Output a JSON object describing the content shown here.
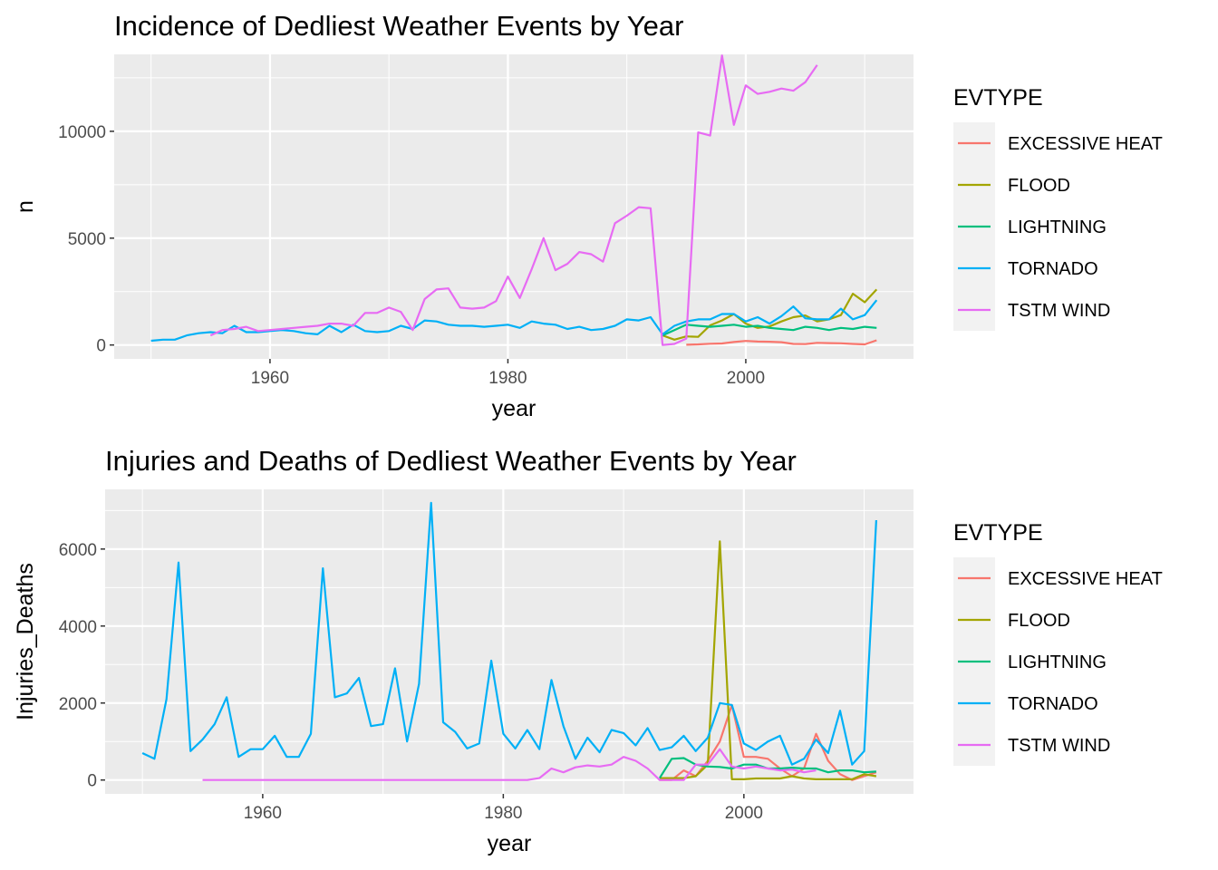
{
  "chart_data": [
    {
      "type": "line",
      "title": "Incidence of Dedliest Weather Events by Year",
      "xlabel": "year",
      "ylabel": "n",
      "xlim": [
        1946.9,
        2014.1
      ],
      "ylim": [
        -650,
        13600
      ],
      "x_ticks": [
        1960,
        1980,
        2000
      ],
      "x_tick_labels": [
        "1960",
        "1980",
        "2000"
      ],
      "y_ticks": [
        0,
        5000,
        10000
      ],
      "y_tick_labels": [
        "0",
        "5000",
        "10000"
      ],
      "grid": true,
      "legend": {
        "title": "EVTYPE",
        "placement": "right"
      },
      "series": [
        {
          "name": "EXCESSIVE HEAT",
          "color": "#F8766D",
          "x": [
            1995,
            1996,
            1997,
            1998,
            1999,
            2000,
            2001,
            2002,
            2003,
            2004,
            2005,
            2006,
            2007,
            2008,
            2009,
            2010,
            2011
          ],
          "y": [
            10,
            30,
            60,
            70,
            140,
            190,
            160,
            150,
            130,
            50,
            40,
            100,
            90,
            80,
            50,
            30,
            220
          ]
        },
        {
          "name": "FLOOD",
          "color": "#A3A500",
          "x": [
            1993,
            1994,
            1995,
            1996,
            1997,
            1998,
            1999,
            2000,
            2001,
            2002,
            2003,
            2004,
            2005,
            2006,
            2007,
            2008,
            2009,
            2010,
            2011
          ],
          "y": [
            450,
            250,
            400,
            380,
            920,
            1150,
            1450,
            1000,
            800,
            870,
            1100,
            1300,
            1380,
            1100,
            1200,
            1400,
            2400,
            2000,
            2600
          ]
        },
        {
          "name": "LIGHTNING",
          "color": "#00BF7D",
          "x": [
            1993,
            1994,
            1995,
            1996,
            1997,
            1998,
            1999,
            2000,
            2001,
            2002,
            2003,
            2004,
            2005,
            2006,
            2007,
            2008,
            2009,
            2010,
            2011
          ],
          "y": [
            450,
            700,
            950,
            900,
            850,
            900,
            950,
            850,
            900,
            800,
            750,
            700,
            850,
            800,
            700,
            800,
            750,
            850,
            800
          ]
        },
        {
          "name": "TORNADO",
          "color": "#00B0F6",
          "x": [
            1950,
            1951,
            1952,
            1953,
            1954,
            1955,
            1956,
            1957,
            1958,
            1959,
            1960,
            1961,
            1962,
            1963,
            1964,
            1965,
            1966,
            1967,
            1968,
            1969,
            1970,
            1971,
            1972,
            1973,
            1974,
            1975,
            1976,
            1977,
            1978,
            1979,
            1980,
            1981,
            1982,
            1983,
            1984,
            1985,
            1986,
            1987,
            1988,
            1989,
            1990,
            1991,
            1992,
            1993,
            1994,
            1995,
            1996,
            1997,
            1998,
            1999,
            2000,
            2001,
            2002,
            2003,
            2004,
            2005,
            2006,
            2007,
            2008,
            2009,
            2010,
            2011
          ],
          "y": [
            200,
            250,
            250,
            450,
            550,
            600,
            550,
            900,
            600,
            600,
            650,
            700,
            650,
            550,
            500,
            900,
            600,
            950,
            650,
            600,
            650,
            900,
            750,
            1150,
            1100,
            950,
            900,
            900,
            850,
            900,
            950,
            800,
            1100,
            1000,
            950,
            750,
            850,
            700,
            750,
            900,
            1200,
            1150,
            1300,
            500,
            900,
            1100,
            1200,
            1200,
            1450,
            1450,
            1100,
            1300,
            1000,
            1350,
            1800,
            1250,
            1200,
            1200,
            1700,
            1200,
            1400,
            2100
          ]
        },
        {
          "name": "TSTM WIND",
          "color": "#E76BF3",
          "x": [
            1955,
            1956,
            1957,
            1958,
            1959,
            1960,
            1961,
            1962,
            1963,
            1964,
            1965,
            1966,
            1967,
            1968,
            1969,
            1970,
            1971,
            1972,
            1973,
            1974,
            1975,
            1976,
            1977,
            1978,
            1979,
            1980,
            1981,
            1982,
            1983,
            1984,
            1985,
            1986,
            1987,
            1988,
            1989,
            1990,
            1991,
            1992,
            1993,
            1994,
            1995,
            1996,
            1997,
            1998,
            1999,
            2000,
            2001,
            2002,
            2003,
            2004,
            2005,
            2006
          ],
          "y": [
            450,
            700,
            750,
            850,
            650,
            700,
            750,
            800,
            850,
            900,
            1000,
            1000,
            900,
            1500,
            1500,
            1750,
            1550,
            700,
            2150,
            2600,
            2650,
            1750,
            1700,
            1750,
            2050,
            3200,
            2200,
            3550,
            5000,
            3500,
            3800,
            4350,
            4250,
            3900,
            5700,
            6050,
            6450,
            6400,
            0,
            50,
            300,
            9950,
            9800,
            13550,
            10300,
            12150,
            11750,
            11850,
            12000,
            11900,
            12300,
            13100
          ]
        }
      ]
    },
    {
      "type": "line",
      "title": "Injuries and Deaths of Dedliest Weather Events by Year",
      "xlabel": "year",
      "ylabel": "Injuries_Deaths",
      "xlim": [
        1946.9,
        2014.1
      ],
      "ylim": [
        -360,
        7550
      ],
      "x_ticks": [
        1960,
        1980,
        2000
      ],
      "x_tick_labels": [
        "1960",
        "1980",
        "2000"
      ],
      "y_ticks": [
        0,
        2000,
        4000,
        6000
      ],
      "y_tick_labels": [
        "0",
        "2000",
        "4000",
        "6000"
      ],
      "grid": true,
      "legend": {
        "title": "EVTYPE",
        "placement": "right"
      },
      "series": [
        {
          "name": "EXCESSIVE HEAT",
          "color": "#F8766D",
          "x": [
            1993,
            1994,
            1995,
            1996,
            1997,
            1998,
            1999,
            2000,
            2001,
            2002,
            2003,
            2004,
            2005,
            2006,
            2007,
            2008,
            2009,
            2010,
            2011
          ],
          "y": [
            0,
            0,
            250,
            100,
            500,
            1000,
            1950,
            600,
            600,
            550,
            300,
            100,
            300,
            1200,
            500,
            150,
            0,
            100,
            200
          ]
        },
        {
          "name": "FLOOD",
          "color": "#A3A500",
          "x": [
            1993,
            1994,
            1995,
            1996,
            1997,
            1998,
            1999,
            2000,
            2001,
            2002,
            2003,
            2004,
            2005,
            2006,
            2007,
            2008,
            2009,
            2010,
            2011
          ],
          "y": [
            50,
            50,
            50,
            100,
            400,
            6200,
            20,
            20,
            40,
            40,
            40,
            100,
            40,
            20,
            20,
            20,
            20,
            150,
            100
          ]
        },
        {
          "name": "LIGHTNING",
          "color": "#00BF7D",
          "x": [
            1993,
            1994,
            1995,
            1996,
            1997,
            1998,
            1999,
            2000,
            2001,
            2002,
            2003,
            2004,
            2005,
            2006,
            2007,
            2008,
            2009,
            2010,
            2011
          ],
          "y": [
            50,
            550,
            570,
            400,
            350,
            340,
            300,
            400,
            400,
            300,
            300,
            320,
            300,
            300,
            200,
            250,
            250,
            200,
            220
          ]
        },
        {
          "name": "TORNADO",
          "color": "#00B0F6",
          "x": [
            1950,
            1951,
            1952,
            1953,
            1954,
            1955,
            1956,
            1957,
            1958,
            1959,
            1960,
            1961,
            1962,
            1963,
            1964,
            1965,
            1966,
            1967,
            1968,
            1969,
            1970,
            1971,
            1972,
            1973,
            1974,
            1975,
            1976,
            1977,
            1978,
            1979,
            1980,
            1981,
            1982,
            1983,
            1984,
            1985,
            1986,
            1987,
            1988,
            1989,
            1990,
            1991,
            1992,
            1993,
            1994,
            1995,
            1996,
            1997,
            1998,
            1999,
            2000,
            2001,
            2002,
            2003,
            2004,
            2005,
            2006,
            2007,
            2008,
            2009,
            2010,
            2011
          ],
          "y": [
            700,
            550,
            2100,
            5650,
            750,
            1050,
            1450,
            2150,
            600,
            800,
            800,
            1150,
            600,
            600,
            1200,
            5500,
            2150,
            2250,
            2650,
            1400,
            1450,
            2900,
            1000,
            2500,
            7200,
            1500,
            1250,
            820,
            950,
            3100,
            1200,
            820,
            1300,
            800,
            2600,
            1400,
            550,
            1100,
            720,
            1300,
            1220,
            900,
            1350,
            780,
            850,
            1150,
            750,
            1100,
            2000,
            1950,
            950,
            780,
            1000,
            1150,
            400,
            550,
            1050,
            700,
            1800,
            400,
            750,
            6750
          ]
        },
        {
          "name": "TSTM WIND",
          "color": "#E76BF3",
          "x": [
            1955,
            1956,
            1957,
            1958,
            1959,
            1960,
            1961,
            1962,
            1963,
            1964,
            1965,
            1966,
            1967,
            1968,
            1969,
            1970,
            1971,
            1972,
            1973,
            1974,
            1975,
            1976,
            1977,
            1978,
            1979,
            1980,
            1981,
            1982,
            1983,
            1984,
            1985,
            1986,
            1987,
            1988,
            1989,
            1990,
            1991,
            1992,
            1993,
            1994,
            1995,
            1996,
            1997,
            1998,
            1999,
            2000,
            2001,
            2002,
            2003,
            2004,
            2005,
            2006
          ],
          "y": [
            0,
            0,
            0,
            0,
            0,
            0,
            0,
            0,
            0,
            0,
            0,
            0,
            0,
            0,
            0,
            0,
            0,
            0,
            0,
            0,
            0,
            0,
            0,
            0,
            0,
            0,
            0,
            0,
            50,
            300,
            200,
            330,
            380,
            350,
            400,
            600,
            500,
            300,
            0,
            0,
            0,
            400,
            400,
            800,
            350,
            300,
            350,
            300,
            250,
            270,
            200,
            250
          ]
        }
      ]
    }
  ]
}
